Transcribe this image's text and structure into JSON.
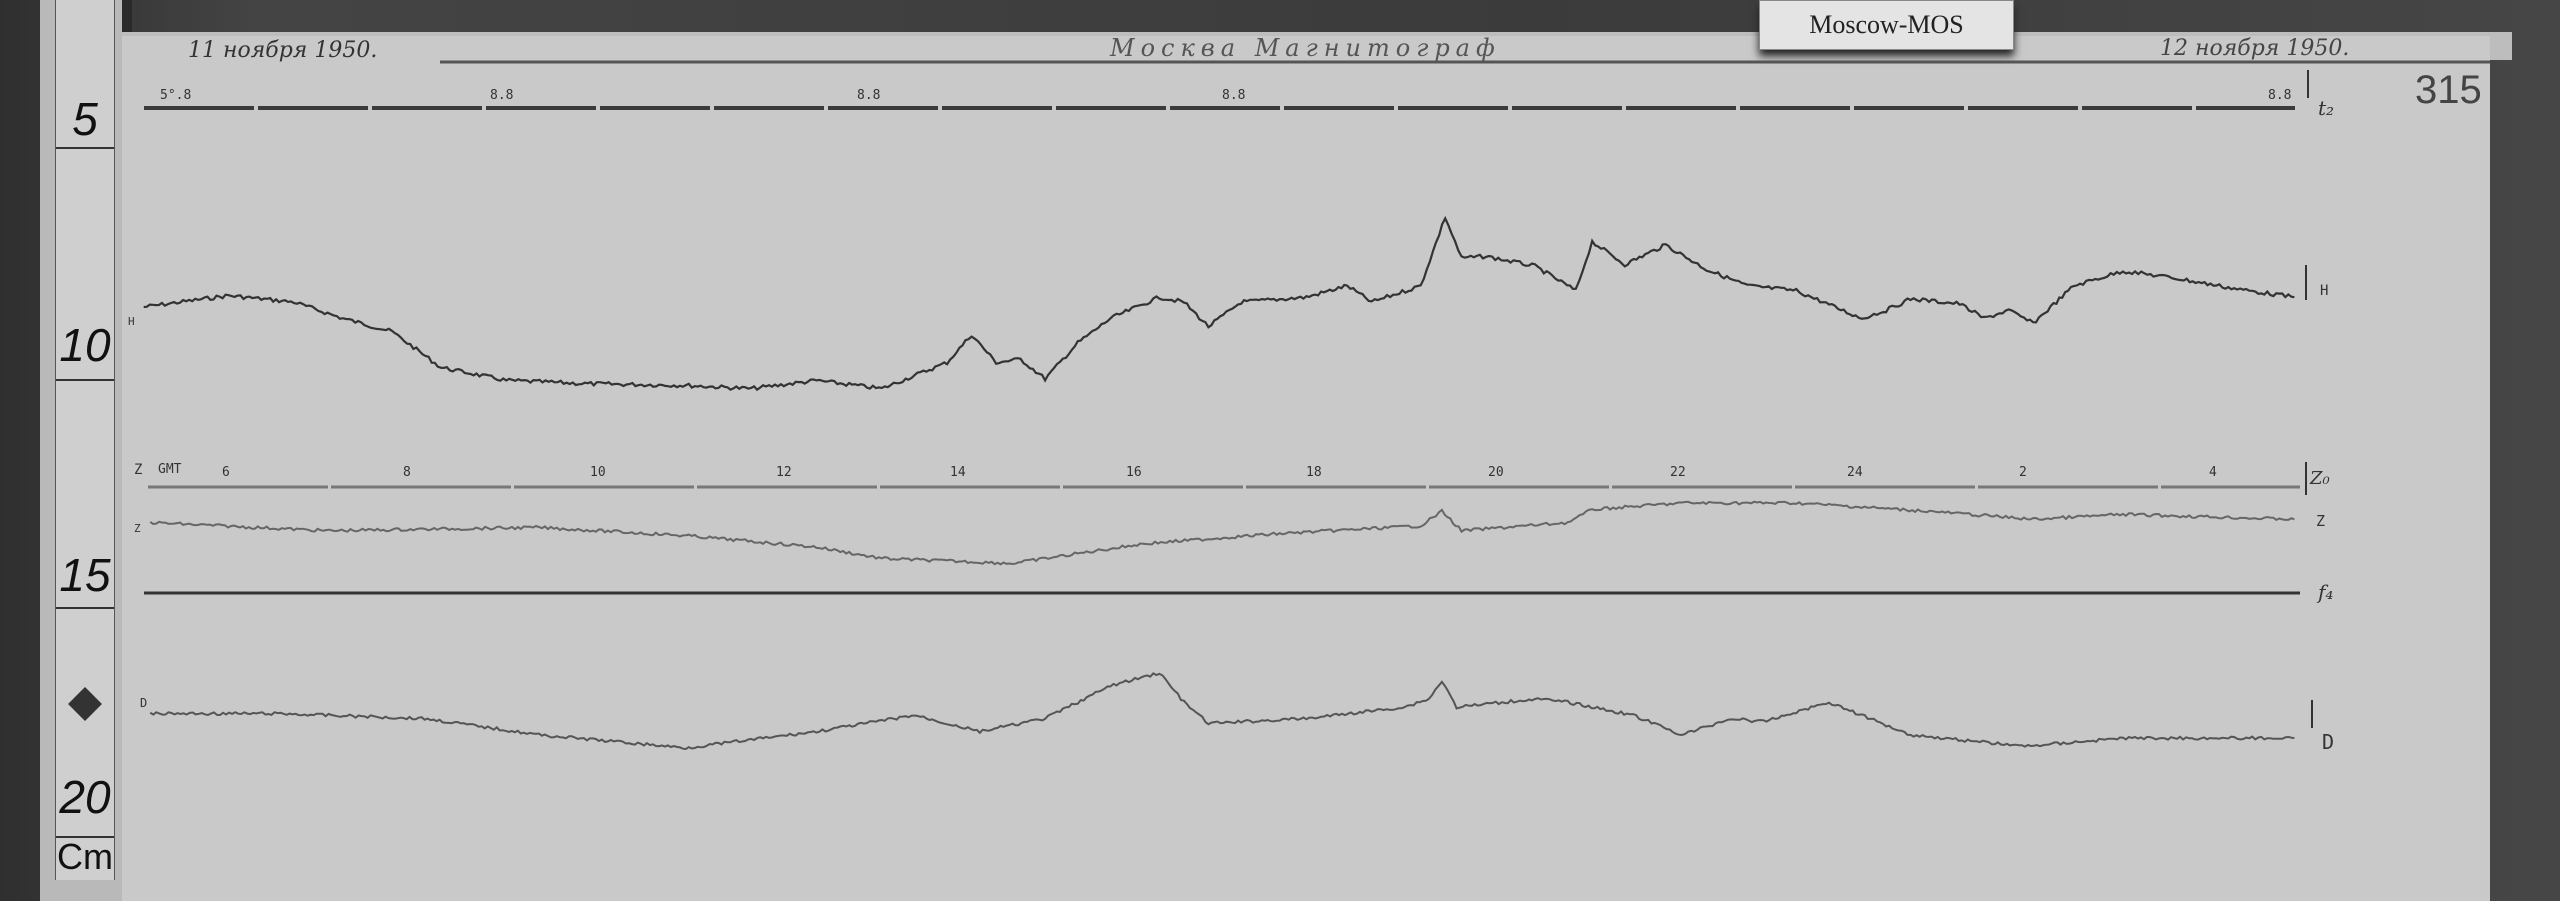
{
  "ruler": {
    "marks": [
      "5",
      "10",
      "15",
      "20"
    ],
    "unit": "Cm"
  },
  "station_label": "Moscow-MOS",
  "header": {
    "date_start": "11 ноября 1950.",
    "title": "Москва Магнитограф",
    "date_end": "12 ноября 1950.",
    "sheet_number": "315"
  },
  "timing_line": {
    "labels": [
      "5°.8",
      "8.8",
      "8.8",
      "8.8",
      "8.8"
    ],
    "right_label": "t₂"
  },
  "gmt_axis": {
    "label": "GMT",
    "ticks": [
      "6",
      "8",
      "10",
      "12",
      "14",
      "16",
      "18",
      "20",
      "22",
      "24",
      "2",
      "4"
    ],
    "right_label": "Z₀"
  },
  "traces": {
    "h": {
      "label": "H",
      "left_label": "H"
    },
    "z": {
      "label": "Z",
      "left_label": "Z",
      "axis_left_label": "Z"
    },
    "baseline": {
      "label": "f₄"
    },
    "d": {
      "label": "D",
      "left_label": "D"
    }
  },
  "colors": {
    "paper": "#c9c9c9",
    "ink": "#333333",
    "background": "#3a3a3a"
  }
}
